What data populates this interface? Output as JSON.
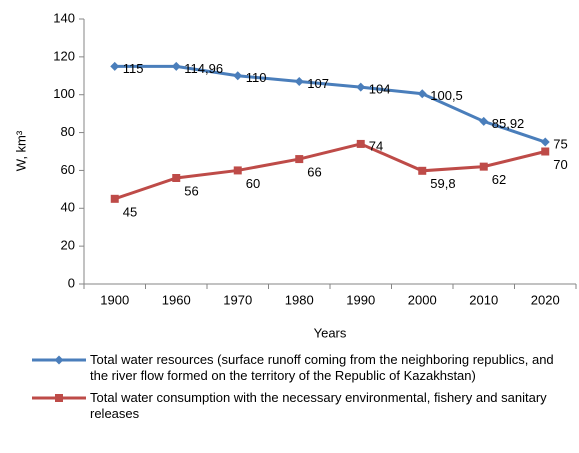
{
  "chart_data": {
    "type": "line",
    "categories": [
      "1900",
      "1960",
      "1970",
      "1980",
      "1990",
      "2000",
      "2010",
      "2020"
    ],
    "series": [
      {
        "name": "Total water resources (surface runoff coming from the neighboring republics, and the river flow formed on the territory of the Republic of Kazakhstan)",
        "color": "#4a7ebb",
        "marker": "diamond",
        "values": [
          115,
          114.96,
          110,
          107,
          104,
          100.5,
          85.92,
          75
        ],
        "value_labels": [
          "115",
          "114,96",
          "110",
          "107",
          "104",
          "100,5",
          "85,92",
          "75"
        ]
      },
      {
        "name": "Total water consumption with the necessary environmental, fishery and sanitary releases",
        "color": "#be4b48",
        "marker": "square",
        "values": [
          45,
          56,
          60,
          66,
          74,
          59.8,
          62,
          70
        ],
        "value_labels": [
          "45",
          "56",
          "60",
          "66",
          "74",
          "59,8",
          "62",
          "70"
        ]
      }
    ],
    "ylim": [
      0,
      140
    ],
    "yticks": [
      0,
      20,
      40,
      60,
      80,
      100,
      120,
      140
    ],
    "xlabel": "Years",
    "ylabel": "W, km³",
    "grid": false,
    "legend": "bottom"
  }
}
